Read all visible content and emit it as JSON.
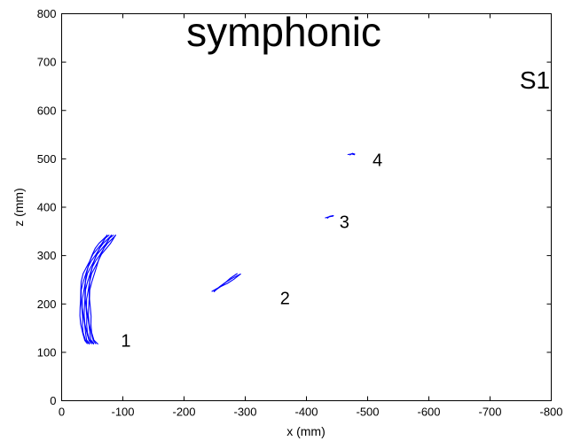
{
  "chart_data": {
    "type": "line",
    "title": "symphonic",
    "panel_label": "S1",
    "xlabel": "x (mm)",
    "ylabel": "z (mm)",
    "xlim": [
      0,
      -800
    ],
    "ylim": [
      0,
      800
    ],
    "xticks": [
      0,
      -100,
      -200,
      -300,
      -400,
      -500,
      -600,
      -700,
      -800
    ],
    "yticks": [
      0,
      100,
      200,
      300,
      400,
      500,
      600,
      700,
      800
    ],
    "grid": false,
    "color": "#0000ff",
    "series": [
      {
        "label": "1",
        "label_pos": [
          -105,
          112
        ],
        "strokes": 8,
        "x": [
          -50,
          -45,
          -42,
          -40,
          -39,
          -38,
          -38,
          -39,
          -41,
          -44,
          -48,
          -53,
          -58,
          -64,
          -70,
          -76,
          -81
        ],
        "z": [
          118,
          125,
          140,
          158,
          175,
          192,
          210,
          228,
          245,
          262,
          276,
          290,
          302,
          314,
          325,
          335,
          342
        ]
      },
      {
        "label": "2",
        "label_pos": [
          -365,
          200
        ],
        "strokes": 3,
        "x": [
          -248,
          -258,
          -268,
          -278,
          -290
        ],
        "z": [
          226,
          235,
          243,
          252,
          262
        ]
      },
      {
        "label": "3",
        "label_pos": [
          -462,
          357
        ],
        "strokes": 2,
        "x": [
          -432,
          -437,
          -444
        ],
        "z": [
          378,
          381,
          382
        ]
      },
      {
        "label": "4",
        "label_pos": [
          -516,
          485
        ],
        "strokes": 2,
        "x": [
          -469,
          -474,
          -479
        ],
        "z": [
          509,
          511,
          509
        ]
      }
    ]
  }
}
